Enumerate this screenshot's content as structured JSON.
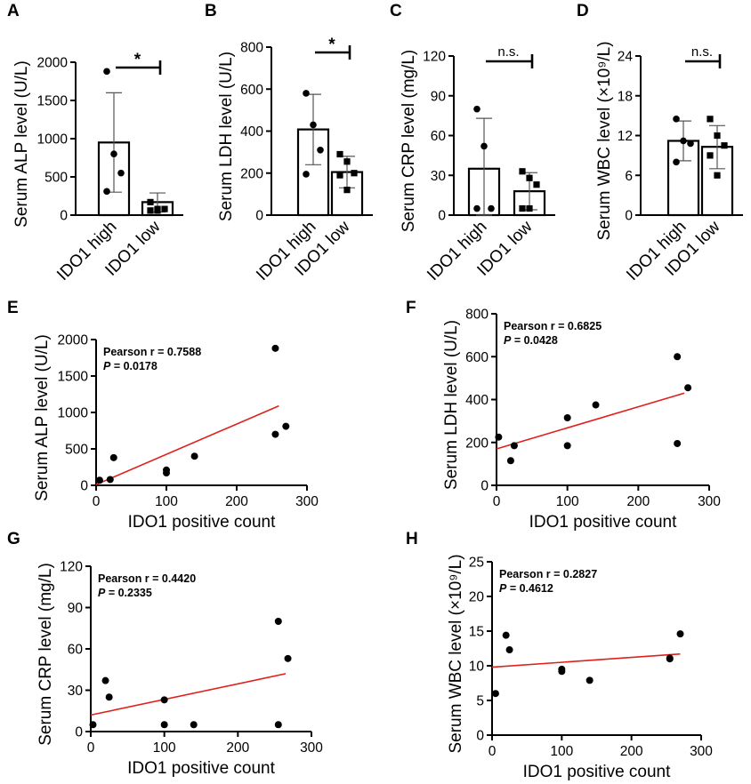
{
  "figure": {
    "bar_panels": [
      {
        "label": "A",
        "ylabel": "Serum ALP level (U/L)",
        "yticks": [
          0,
          500,
          1000,
          1500,
          2000
        ],
        "ylim": [
          0,
          2000
        ],
        "categories": [
          "IDO1 high",
          "IDO1 low"
        ],
        "means": [
          950,
          170
        ],
        "sd_low": [
          300,
          40
        ],
        "sd_high": [
          1600,
          290
        ],
        "points": [
          [
            1880,
            800,
            550,
            310
          ],
          [
            170,
            80,
            80,
            60,
            60
          ]
        ],
        "markers": [
          "circle",
          "square"
        ],
        "significance": "*"
      },
      {
        "label": "B",
        "ylabel": "Serum LDH level (U/L)",
        "yticks": [
          0,
          200,
          400,
          600,
          800
        ],
        "ylim": [
          0,
          800
        ],
        "categories": [
          "IDO1 high",
          "IDO1 low"
        ],
        "means": [
          408,
          205
        ],
        "sd_low": [
          240,
          130
        ],
        "sd_high": [
          575,
          280
        ],
        "points": [
          [
            580,
            430,
            310,
            195
          ],
          [
            290,
            255,
            200,
            190,
            120
          ]
        ],
        "markers": [
          "circle",
          "square"
        ],
        "significance": "*"
      },
      {
        "label": "C",
        "ylabel": "Serum CRP level (mg/L)",
        "yticks": [
          0,
          30,
          60,
          90,
          120
        ],
        "ylim": [
          0,
          120
        ],
        "categories": [
          "IDO1 high",
          "IDO1 low"
        ],
        "means": [
          35,
          18
        ],
        "sd_low": [
          0,
          4
        ],
        "sd_high": [
          73,
          32
        ],
        "points": [
          [
            80,
            52,
            5,
            5
          ],
          [
            33,
            28,
            23,
            5,
            5
          ]
        ],
        "markers": [
          "circle",
          "square"
        ],
        "significance": "n.s."
      },
      {
        "label": "D",
        "ylabel": "Serum WBC level (×10⁹/L)",
        "yticks": [
          0,
          6,
          12,
          18,
          24
        ],
        "ylim": [
          0,
          24
        ],
        "categories": [
          "IDO1 high",
          "IDO1 low"
        ],
        "means": [
          11.2,
          10.3
        ],
        "sd_low": [
          8.2,
          7
        ],
        "sd_high": [
          14.2,
          13.5
        ],
        "points": [
          [
            14.5,
            11.2,
            10.8,
            8
          ],
          [
            14.5,
            12,
            10.5,
            9,
            6
          ]
        ],
        "markers": [
          "circle",
          "square"
        ],
        "significance": "n.s."
      }
    ],
    "scatter_panels": [
      {
        "label": "E",
        "ylabel": "Serum ALP level (U/L)",
        "xlabel": "IDO1 positive count",
        "yticks": [
          0,
          500,
          1000,
          1500,
          2000
        ],
        "ylim": [
          0,
          2000
        ],
        "xticks": [
          0,
          100,
          200,
          300
        ],
        "xlim": [
          0,
          300
        ],
        "pearson": "Pearson r = 0.7588",
        "p_label": "P",
        "p_value": " = 0.0178",
        "points": [
          [
            5,
            70
          ],
          [
            20,
            80
          ],
          [
            25,
            380
          ],
          [
            100,
            210
          ],
          [
            100,
            170
          ],
          [
            140,
            400
          ],
          [
            255,
            1880
          ],
          [
            255,
            700
          ],
          [
            270,
            810
          ]
        ],
        "fit": [
          [
            0,
            10
          ],
          [
            260,
            1090
          ]
        ]
      },
      {
        "label": "F",
        "ylabel": "Serum LDH level (U/L)",
        "xlabel": "IDO1 positive count",
        "yticks": [
          0,
          200,
          400,
          600,
          800
        ],
        "ylim": [
          0,
          800
        ],
        "xticks": [
          0,
          100,
          200,
          300
        ],
        "xlim": [
          0,
          300
        ],
        "pearson": "Pearson r = 0.6825",
        "p_label": "P",
        "p_value": " = 0.0428",
        "points": [
          [
            3,
            225
          ],
          [
            20,
            115
          ],
          [
            25,
            185
          ],
          [
            100,
            315
          ],
          [
            100,
            185
          ],
          [
            140,
            375
          ],
          [
            255,
            600
          ],
          [
            255,
            195
          ],
          [
            270,
            455
          ]
        ],
        "fit": [
          [
            0,
            170
          ],
          [
            265,
            430
          ]
        ]
      },
      {
        "label": "G",
        "ylabel": "Serum CRP level (mg/L)",
        "xlabel": "IDO1 positive count",
        "yticks": [
          0,
          30,
          60,
          90,
          120
        ],
        "ylim": [
          0,
          120
        ],
        "xticks": [
          0,
          100,
          200,
          300
        ],
        "xlim": [
          0,
          300
        ],
        "pearson": "Pearson r = 0.4420",
        "p_label": "P",
        "p_value": " = 0.2335",
        "points": [
          [
            3,
            5
          ],
          [
            20,
            37
          ],
          [
            25,
            25
          ],
          [
            100,
            23
          ],
          [
            100,
            5
          ],
          [
            140,
            5
          ],
          [
            255,
            80
          ],
          [
            255,
            5
          ],
          [
            268,
            53
          ]
        ],
        "fit": [
          [
            0,
            12
          ],
          [
            265,
            42
          ]
        ]
      },
      {
        "label": "H",
        "ylabel": "Serum WBC level (×10⁹/L)",
        "xlabel": "IDO1 positive count",
        "yticks": [
          0,
          5,
          10,
          15,
          20,
          25
        ],
        "ylim": [
          0,
          25
        ],
        "xticks": [
          0,
          100,
          200,
          300
        ],
        "xlim": [
          0,
          300
        ],
        "pearson": "Pearson r = 0.2827",
        "p_label": "P",
        "p_value": " = 0.4612",
        "points": [
          [
            5,
            6
          ],
          [
            20,
            14.4
          ],
          [
            25,
            12.3
          ],
          [
            100,
            9.5
          ],
          [
            100,
            9.2
          ],
          [
            140,
            7.9
          ],
          [
            255,
            11
          ],
          [
            255,
            11.1
          ],
          [
            270,
            14.6
          ]
        ],
        "fit": [
          [
            0,
            9.8
          ],
          [
            270,
            11.7
          ]
        ]
      }
    ]
  },
  "chart_data": [
    {
      "type": "bar",
      "panel": "A",
      "categories": [
        "IDO1 high",
        "IDO1 low"
      ],
      "values": [
        950,
        170
      ],
      "ylabel": "Serum ALP level (U/L)",
      "ylim": [
        0,
        2000
      ]
    },
    {
      "type": "bar",
      "panel": "B",
      "categories": [
        "IDO1 high",
        "IDO1 low"
      ],
      "values": [
        408,
        205
      ],
      "ylabel": "Serum LDH level (U/L)",
      "ylim": [
        0,
        800
      ]
    },
    {
      "type": "bar",
      "panel": "C",
      "categories": [
        "IDO1 high",
        "IDO1 low"
      ],
      "values": [
        35,
        18
      ],
      "ylabel": "Serum CRP level (mg/L)",
      "ylim": [
        0,
        120
      ]
    },
    {
      "type": "bar",
      "panel": "D",
      "categories": [
        "IDO1 high",
        "IDO1 low"
      ],
      "values": [
        11.2,
        10.3
      ],
      "ylabel": "Serum WBC level (×10⁹/L)",
      "ylim": [
        0,
        24
      ]
    },
    {
      "type": "scatter",
      "panel": "E",
      "xlabel": "IDO1 positive count",
      "ylabel": "Serum ALP level (U/L)",
      "x": [
        5,
        20,
        25,
        100,
        100,
        140,
        255,
        255,
        270
      ],
      "y": [
        70,
        80,
        380,
        210,
        170,
        400,
        1880,
        700,
        810
      ]
    },
    {
      "type": "scatter",
      "panel": "F",
      "xlabel": "IDO1 positive count",
      "ylabel": "Serum LDH level (U/L)",
      "x": [
        3,
        20,
        25,
        100,
        100,
        140,
        255,
        255,
        270
      ],
      "y": [
        225,
        115,
        185,
        315,
        185,
        375,
        600,
        195,
        455
      ]
    },
    {
      "type": "scatter",
      "panel": "G",
      "xlabel": "IDO1 positive count",
      "ylabel": "Serum CRP level (mg/L)",
      "x": [
        3,
        20,
        25,
        100,
        100,
        140,
        255,
        255,
        268
      ],
      "y": [
        5,
        37,
        25,
        23,
        5,
        5,
        80,
        5,
        53
      ]
    },
    {
      "type": "scatter",
      "panel": "H",
      "xlabel": "IDO1 positive count",
      "ylabel": "Serum WBC level (×10⁹/L)",
      "x": [
        5,
        20,
        25,
        100,
        100,
        140,
        255,
        255,
        270
      ],
      "y": [
        6,
        14.4,
        12.3,
        9.5,
        9.2,
        7.9,
        11,
        11.1,
        14.6
      ]
    }
  ]
}
